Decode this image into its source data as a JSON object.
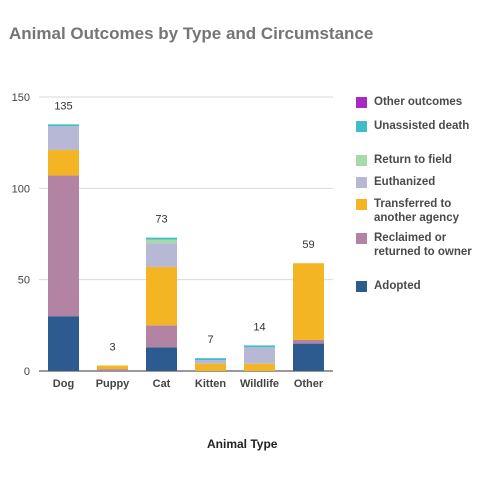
{
  "chart_data": {
    "type": "bar",
    "stacked": true,
    "title": "Animal Outcomes by Type and Circumstance",
    "xlabel": "Animal Type",
    "ylabel": "",
    "ylim": [
      0,
      150
    ],
    "yticks": [
      0,
      50,
      100,
      150
    ],
    "grid": true,
    "legend_position": "right",
    "categories": [
      "Dog",
      "Puppy",
      "Cat",
      "Kitten",
      "Wildlife",
      "Other"
    ],
    "totals": [
      135,
      3,
      73,
      7,
      14,
      59
    ],
    "series": [
      {
        "name": "Adopted",
        "color": "#2e5b8f",
        "values": [
          30,
          0,
          13,
          0,
          0,
          15
        ]
      },
      {
        "name": "Reclaimed or returned to owner",
        "color": "#b283a3",
        "values": [
          77,
          1,
          12,
          0,
          0,
          2
        ]
      },
      {
        "name": "Transferred to another agency",
        "color": "#f4b524",
        "values": [
          14,
          2,
          32,
          4,
          4,
          42
        ]
      },
      {
        "name": "Euthanized",
        "color": "#b6b8d6",
        "values": [
          13,
          0,
          13,
          2,
          9,
          0
        ]
      },
      {
        "name": "Return to field",
        "color": "#a8d9a8",
        "values": [
          0,
          0,
          2,
          0,
          0,
          0
        ]
      },
      {
        "name": "Unassisted death",
        "color": "#3ebcc8",
        "values": [
          1,
          0,
          1,
          1,
          1,
          0
        ]
      },
      {
        "name": "Other outcomes",
        "color": "#a929c4",
        "values": [
          0,
          0,
          0,
          0,
          0,
          0
        ]
      }
    ]
  }
}
